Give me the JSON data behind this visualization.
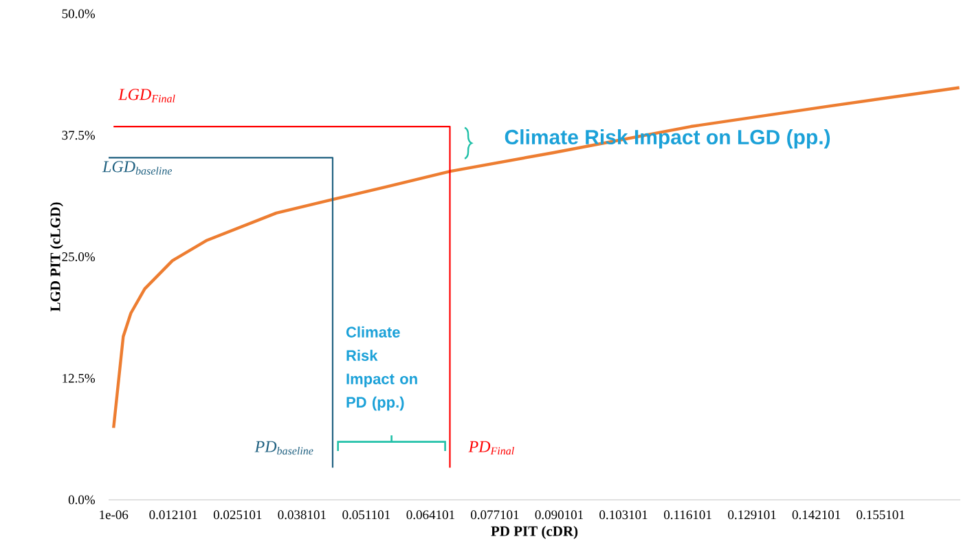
{
  "chart_data": {
    "type": "line",
    "xlabel": "PD PIT (cDR)",
    "ylabel": "LGD PIT (cLGD)",
    "xlim": [
      -0.001,
      0.1712
    ],
    "ylim": [
      0,
      50
    ],
    "xticks": [
      {
        "value": 1e-06,
        "label": "1e-06"
      },
      0.012101,
      0.025101,
      0.038101,
      0.051101,
      0.064101,
      0.077101,
      0.090101,
      0.103101,
      0.116101,
      0.129101,
      0.142101,
      0.155101
    ],
    "yticks": [
      {
        "value": 0,
        "label": "0.0%"
      },
      {
        "value": 12.5,
        "label": "12.5%"
      },
      {
        "value": 25,
        "label": "25.0%"
      },
      {
        "value": 37.5,
        "label": "37.5%"
      },
      {
        "value": 50,
        "label": "50.0%"
      }
    ],
    "marker": "none",
    "line_style": "solid",
    "series": [
      {
        "color": "#ed7d31",
        "x": [
          1e-06,
          0.00196,
          0.0035,
          0.0063,
          0.0119,
          0.0189,
          0.0329,
          0.0443,
          0.0552,
          0.0681,
          0.0888,
          0.1167,
          0.1447,
          0.171
        ],
        "values": [
          7.4,
          16.8,
          19.2,
          21.7,
          24.6,
          26.7,
          29.5,
          30.9,
          32.2,
          33.8,
          35.7,
          38.4,
          40.5,
          42.4
        ]
      },
      {
        "color": "#ff0000",
        "x": [
          0,
          0.068,
          0.068
        ],
        "values": [
          38.4,
          38.4,
          3.3
        ]
      },
      {
        "color": "#1f6080",
        "x": [
          -0.001,
          0.0443,
          0.0443
        ],
        "values": [
          35.2,
          35.2,
          3.3
        ]
      }
    ],
    "annotations": [
      "LGD$_{Final}$",
      "LGD$_{baseline}$",
      "PD$_{baseline}$",
      "PD$_{Final}$",
      "Climate Risk Impact on LGD (pp.)",
      "Climate Risk Impact on PD (pp.)"
    ]
  }
}
